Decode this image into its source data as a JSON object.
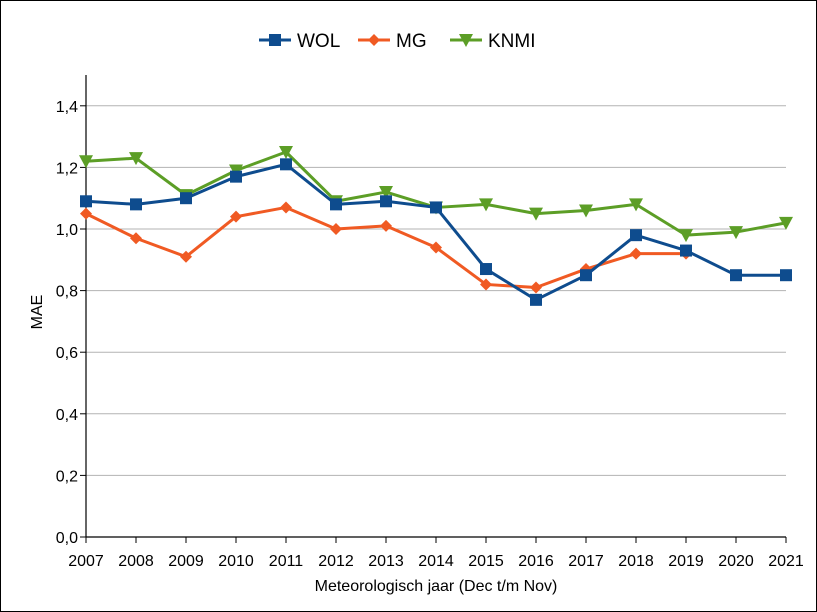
{
  "chart_data": {
    "type": "line",
    "title": "",
    "xlabel": "Meteorologisch jaar (Dec t/m Nov)",
    "ylabel": "MAE",
    "x": [
      "2007",
      "2008",
      "2009",
      "2010",
      "2011",
      "2012",
      "2013",
      "2014",
      "2015",
      "2016",
      "2017",
      "2018",
      "2019",
      "2020",
      "2021"
    ],
    "y_ticks": [
      "0,0",
      "0,2",
      "0,4",
      "0,6",
      "0,8",
      "1,0",
      "1,2",
      "1,4"
    ],
    "ylim": [
      0,
      1.5
    ],
    "grid": "horizontal",
    "legend_position": "top-center",
    "series": [
      {
        "name": "WOL",
        "color": "#0e4c8e",
        "marker": "square",
        "values": [
          1.09,
          1.08,
          1.1,
          1.17,
          1.21,
          1.08,
          1.09,
          1.07,
          0.87,
          0.77,
          0.85,
          0.98,
          0.93,
          0.85,
          0.85
        ]
      },
      {
        "name": "MG",
        "color": "#f05a23",
        "marker": "diamond",
        "values": [
          1.05,
          0.97,
          0.91,
          1.04,
          1.07,
          1.0,
          1.01,
          0.94,
          0.82,
          0.81,
          0.87,
          0.92,
          0.92,
          null,
          null
        ]
      },
      {
        "name": "KNMI",
        "color": "#5c9e26",
        "marker": "triangle-down",
        "values": [
          1.22,
          1.23,
          1.11,
          1.19,
          1.25,
          1.09,
          1.12,
          1.07,
          1.08,
          1.05,
          1.06,
          1.08,
          0.98,
          0.99,
          1.02
        ]
      }
    ]
  }
}
